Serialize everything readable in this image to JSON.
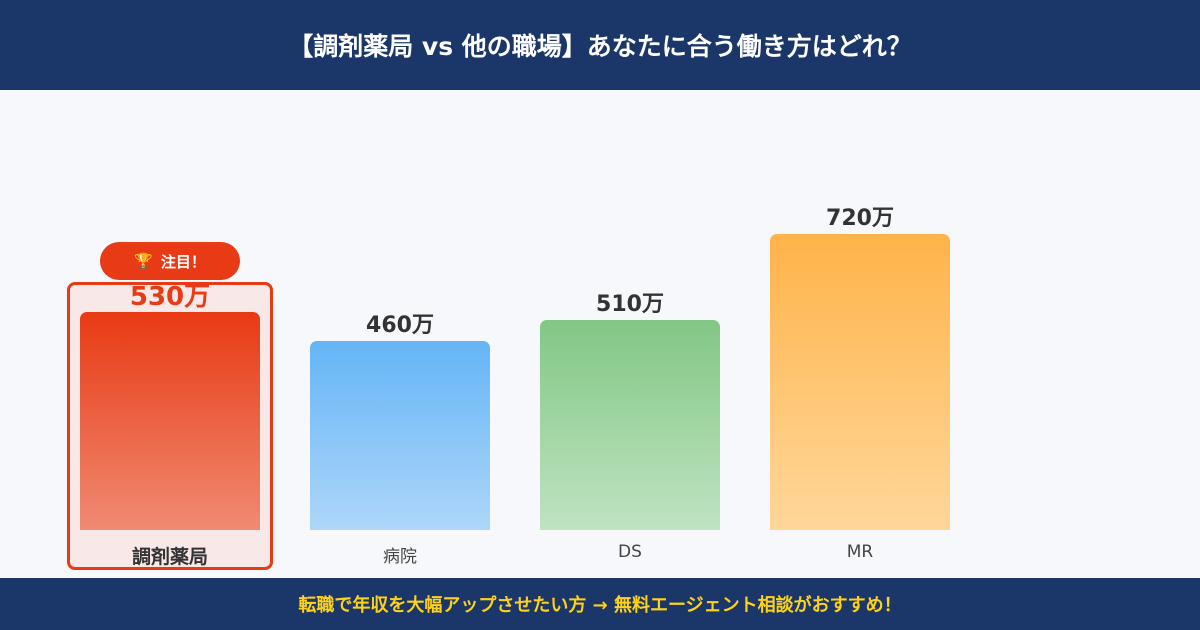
{
  "header": {
    "title": "【調剤薬局 vs 他の職場】あなたに合う働き方はどれ？"
  },
  "footer": {
    "text": "転職で年収を大幅アップさせたい方 → 無料エージェント相談がおすすめ！"
  },
  "badge": {
    "icon": "trophy-icon",
    "label": "注目！"
  },
  "chart_data": {
    "type": "bar",
    "title": "【調剤薬局 vs 他の職場】あなたに合う働き方はどれ？",
    "categories": [
      "調剤薬局",
      "病院",
      "DS",
      "MR"
    ],
    "values": [
      530,
      460,
      510,
      720
    ],
    "value_labels": [
      "530万",
      "460万",
      "510万",
      "720万"
    ],
    "unit": "万円",
    "highlight": "調剤薬局",
    "ylim": [
      0,
      720
    ],
    "colors": [
      [
        "#e83a14",
        "#f08a72"
      ],
      [
        "#64b5f6",
        "#aed6fa"
      ],
      [
        "#82c785",
        "#c0e3c1"
      ],
      [
        "#ffb34a",
        "#ffd79a"
      ]
    ]
  }
}
